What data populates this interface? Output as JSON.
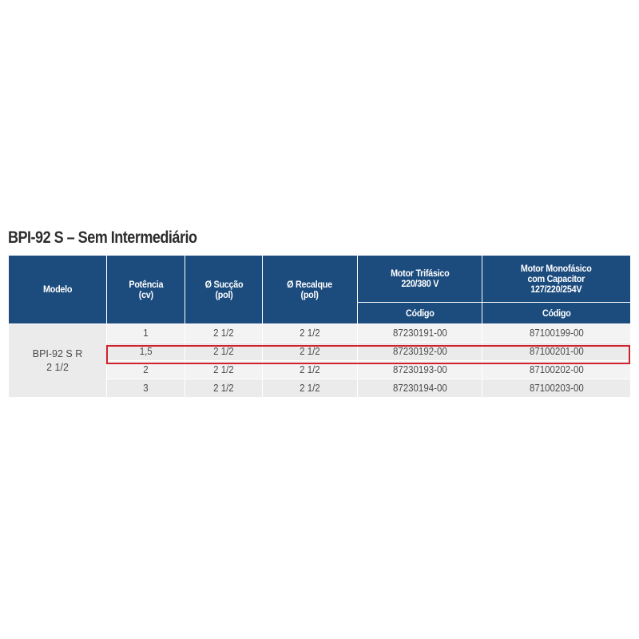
{
  "title": "BPI-92 S – Sem Intermediário",
  "colors": {
    "header_bg": "#1c4c7e",
    "highlight": "#d0222b"
  },
  "table": {
    "headers": {
      "modelo": "Modelo",
      "potencia_1": "Potência",
      "potencia_2": "(cv)",
      "succao_1": "Ø Sucção",
      "succao_2": "(pol)",
      "recalque_1": "Ø Recalque",
      "recalque_2": "(pol)",
      "trifasico_1": "Motor Trifásico",
      "trifasico_2": "220/380 V",
      "monofasico_1": "Motor Monofásico",
      "monofasico_2": "com Capacitor",
      "monofasico_3": "127/220/254V",
      "codigo_tri": "Código",
      "codigo_mono": "Código"
    },
    "model_line1": "BPI-92 S R",
    "model_line2": "2 1/2",
    "rows": [
      {
        "potencia": "1",
        "succao": "2 1/2",
        "recalque": "2 1/2",
        "trifasico": "87230191-00",
        "monofasico": "87100199-00"
      },
      {
        "potencia": "1,5",
        "succao": "2 1/2",
        "recalque": "2 1/2",
        "trifasico": "87230192-00",
        "monofasico": "87100201-00"
      },
      {
        "potencia": "2",
        "succao": "2 1/2",
        "recalque": "2 1/2",
        "trifasico": "87230193-00",
        "monofasico": "87100202-00"
      },
      {
        "potencia": "3",
        "succao": "2 1/2",
        "recalque": "2 1/2",
        "trifasico": "87230194-00",
        "monofasico": "87100203-00"
      }
    ]
  }
}
